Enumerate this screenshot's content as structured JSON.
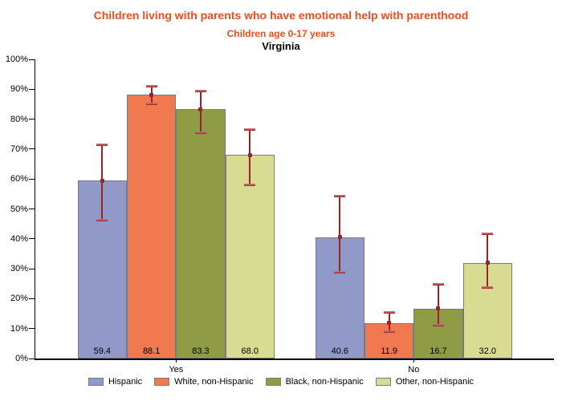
{
  "header": {
    "title": "Children living with parents who have emotional help with parenthood",
    "subtitle": "Children age 0-17 years",
    "region": "Virginia",
    "title_color": "#EB4E20"
  },
  "chart_data": {
    "type": "bar",
    "categories": [
      "Yes",
      "No"
    ],
    "series": [
      {
        "name": "Hispanic",
        "color": "#9199C9",
        "values": [
          59.4,
          40.6
        ],
        "ci": [
          [
            46.3,
            71.5
          ],
          [
            28.7,
            54.2
          ]
        ]
      },
      {
        "name": "White, non-Hispanic",
        "color": "#F0794F",
        "values": [
          88.1,
          11.9
        ],
        "ci": [
          [
            85.1,
            91.1
          ],
          [
            9.0,
            15.3
          ]
        ]
      },
      {
        "name": "Black, non-Hispanic",
        "color": "#8F9B45",
        "values": [
          83.3,
          16.7
        ],
        "ci": [
          [
            75.4,
            89.3
          ],
          [
            11.0,
            24.9
          ]
        ]
      },
      {
        "name": "Other, non-Hispanic",
        "color": "#D8DC93",
        "values": [
          68.0,
          32.0
        ],
        "ci": [
          [
            58.0,
            76.5
          ],
          [
            23.6,
            41.8
          ]
        ]
      }
    ],
    "value_labels": [
      [
        "59.4",
        "40.6"
      ],
      [
        "88.1",
        "11.9"
      ],
      [
        "83.3",
        "16.7"
      ],
      [
        "68.0",
        "32.0"
      ]
    ],
    "title": "Children living with parents who have emotional help with parenthood",
    "xlabel": "",
    "ylabel": "",
    "ylim": [
      0,
      100
    ],
    "yticks": [
      "0%",
      "10%",
      "20%",
      "30%",
      "40%",
      "50%",
      "60%",
      "70%",
      "80%",
      "90%",
      "100%"
    ],
    "grid": false,
    "legend_position": "bottom",
    "error_bars": true,
    "error_bar_color": "#9B2227",
    "error_bar_cap_color": "#D18388",
    "bar_border_color": "#7A7A7A"
  }
}
